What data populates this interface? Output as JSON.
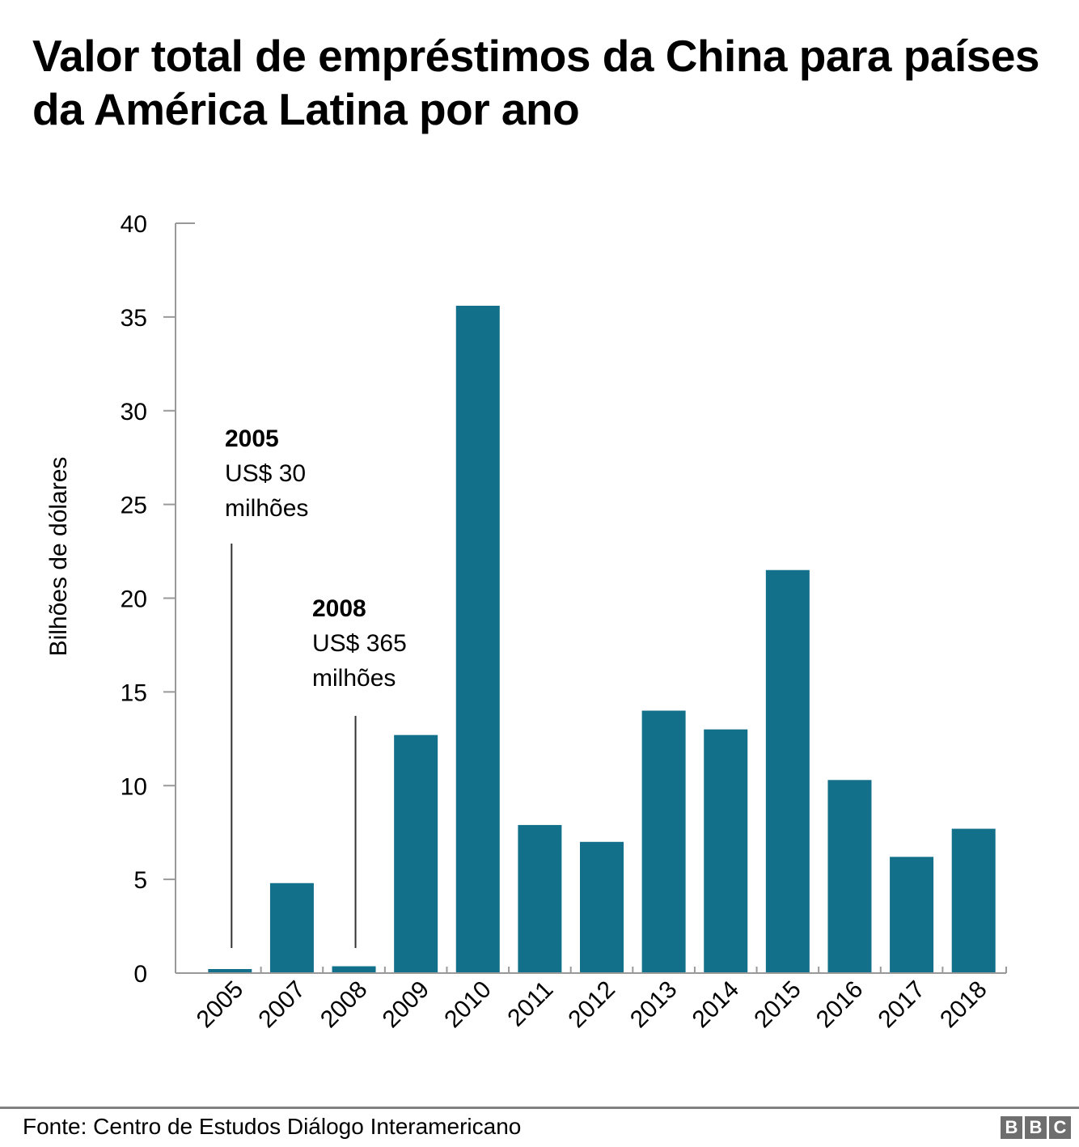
{
  "title": "Valor total de empréstimos da China para países da América Latina por ano",
  "source": "Fonte: Centro de Estudos Diálogo Interamericano",
  "logo": [
    "B",
    "B",
    "C"
  ],
  "colors": {
    "bar": "#13708b",
    "axis": "#999999",
    "annotation_line": "#333333"
  },
  "chart_data": {
    "type": "bar",
    "title": "Valor total de empréstimos da China para países da América Latina por ano",
    "xlabel": "",
    "ylabel": "Bilhões de dólares",
    "categories": [
      "2005",
      "2007",
      "2008",
      "2009",
      "2010",
      "2011",
      "2012",
      "2013",
      "2014",
      "2015",
      "2016",
      "2017",
      "2018"
    ],
    "values": [
      0.03,
      4.8,
      0.365,
      12.7,
      35.6,
      7.9,
      7.0,
      14.0,
      13.0,
      21.5,
      10.3,
      6.2,
      7.7
    ],
    "ylim": [
      0,
      40
    ],
    "yticks": [
      0,
      5,
      10,
      15,
      20,
      25,
      30,
      35,
      40
    ],
    "grid": false,
    "legend": "none",
    "annotations": [
      {
        "category": "2005",
        "year": "2005",
        "line1": "US$ 30",
        "line2": "milhões"
      },
      {
        "category": "2008",
        "year": "2008",
        "line1": "US$ 365",
        "line2": "milhões"
      }
    ]
  }
}
